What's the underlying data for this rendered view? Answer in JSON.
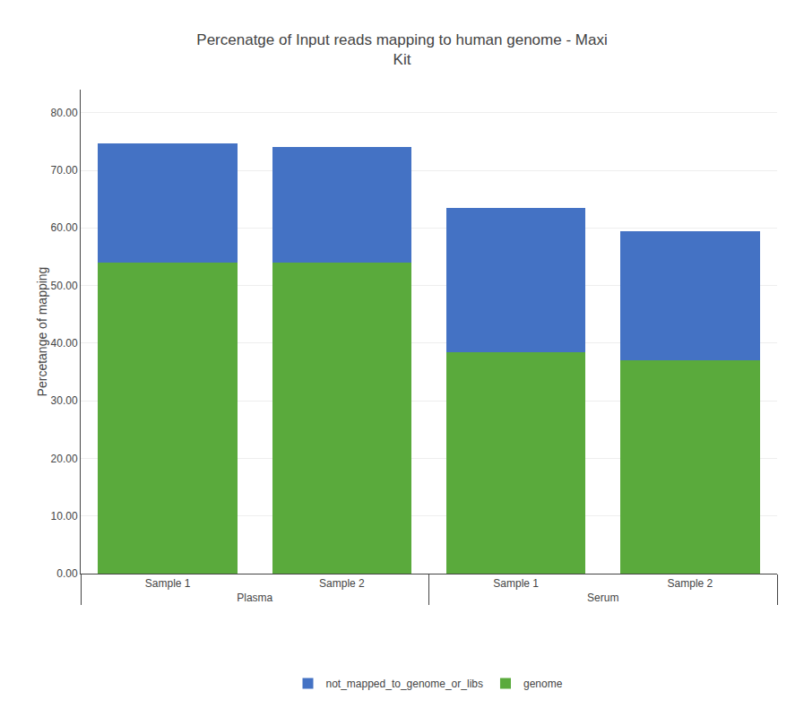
{
  "chart_data": {
    "type": "bar",
    "stacked": true,
    "title": "Percenatge of Input reads mapping to human genome - Maxi\nKit",
    "ylabel": "Percetange of mapping",
    "categories": [
      [
        "Plasma",
        "Sample 1"
      ],
      [
        "Plasma",
        "Sample 2"
      ],
      [
        "Serum",
        "Sample 1"
      ],
      [
        "Serum",
        "Sample 2"
      ]
    ],
    "series": [
      {
        "name": "genome",
        "color": "#5aaa3c",
        "values": [
          54.0,
          54.0,
          38.5,
          37.0
        ]
      },
      {
        "name": "not_mapped_to_genome_or_libs",
        "color": "#4472c4",
        "values": [
          20.7,
          20.0,
          25.0,
          22.5
        ]
      }
    ],
    "ylim": [
      0,
      84
    ],
    "yticks": [
      {
        "value": 0,
        "label": "0.00"
      },
      {
        "value": 10,
        "label": "10.00"
      },
      {
        "value": 20,
        "label": "20.00"
      },
      {
        "value": 30,
        "label": "30.00"
      },
      {
        "value": 40,
        "label": "40.00"
      },
      {
        "value": 50,
        "label": "50.00"
      },
      {
        "value": 60,
        "label": "60.00"
      },
      {
        "value": 70,
        "label": "70.00"
      },
      {
        "value": 80,
        "label": "80.00"
      }
    ],
    "grid": true,
    "legend": "bottom"
  }
}
